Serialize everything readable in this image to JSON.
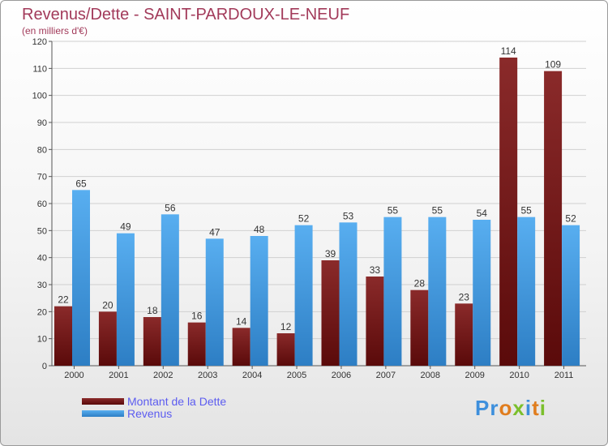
{
  "header": {
    "title": "Revenus/Dette - SAINT-PARDOUX-LE-NEUF",
    "subtitle": "(en milliers d'€)"
  },
  "logo": {
    "text": "Proxiti",
    "colors": [
      "#3d8fdc",
      "#e07d1e",
      "#7bbf2c"
    ]
  },
  "chart_data": {
    "type": "bar",
    "categories": [
      "2000",
      "2001",
      "2002",
      "2003",
      "2004",
      "2005",
      "2006",
      "2007",
      "2008",
      "2009",
      "2010",
      "2011"
    ],
    "series": [
      {
        "name": "Montant de la Dette",
        "color": "#7a1a1a",
        "values": [
          22,
          20,
          18,
          16,
          14,
          12,
          39,
          33,
          28,
          23,
          114,
          109
        ]
      },
      {
        "name": "Revenus",
        "color": "#4aa3e8",
        "values": [
          65,
          49,
          56,
          47,
          48,
          52,
          53,
          55,
          55,
          54,
          55,
          52
        ]
      }
    ],
    "title": "Revenus/Dette - SAINT-PARDOUX-LE-NEUF",
    "ylabel": "(en milliers d'€)",
    "ylim": [
      0,
      120
    ],
    "yticks": [
      "0",
      "10",
      "20",
      "30",
      "40",
      "50",
      "60",
      "70",
      "80",
      "90",
      "100",
      "110",
      "120"
    ],
    "grid": true,
    "legend": "bottom-left"
  }
}
